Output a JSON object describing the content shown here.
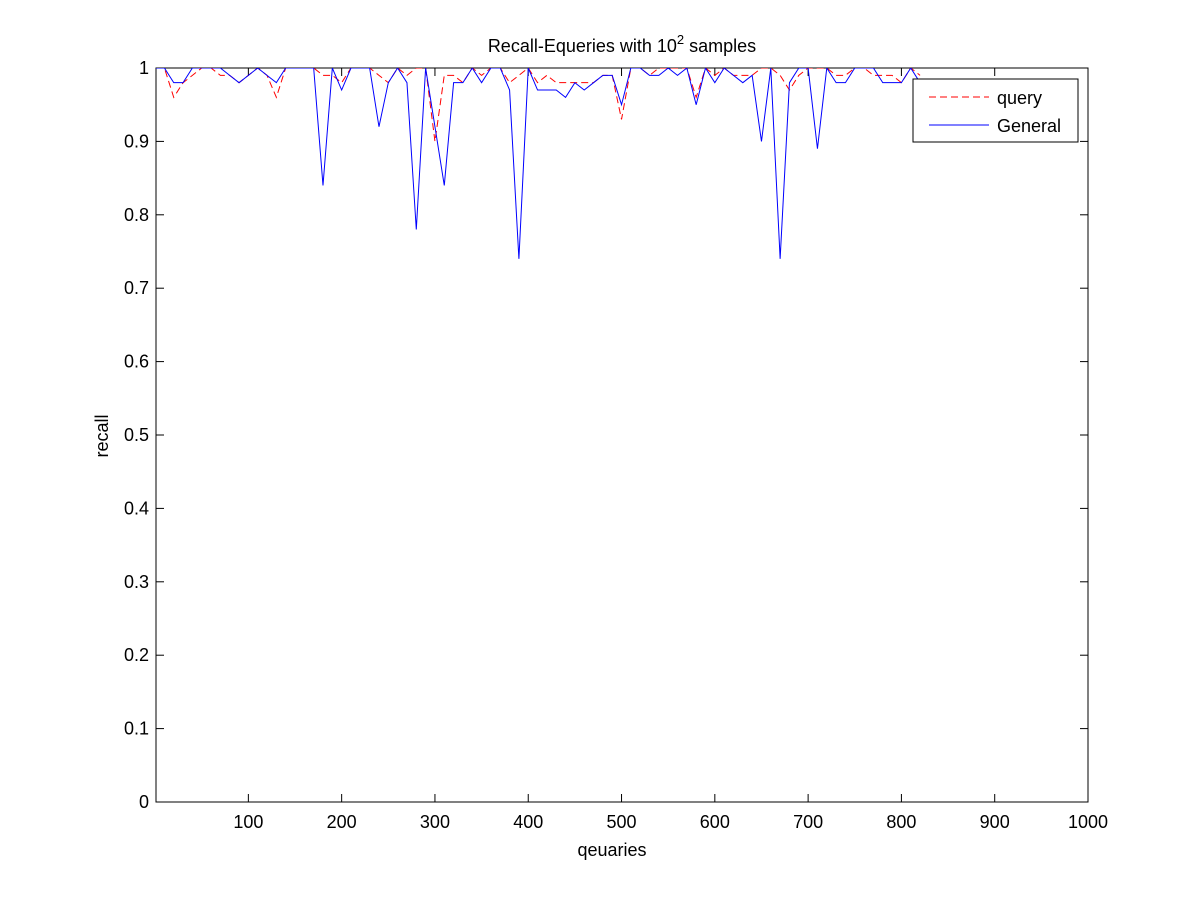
{
  "chart_data": {
    "type": "line",
    "title_main": "Recall-Equeries with 10",
    "title_sup": "2",
    "title_tail": " samples",
    "xlabel": "qeuaries",
    "ylabel": "recall",
    "xlim": [
      1,
      1000
    ],
    "ylim": [
      0,
      1
    ],
    "xticks": [
      100,
      200,
      300,
      400,
      500,
      600,
      700,
      800,
      900,
      1000
    ],
    "yticks": [
      0,
      0.1,
      0.2,
      0.3,
      0.4,
      0.5,
      0.6,
      0.7,
      0.8,
      0.9,
      1
    ],
    "ytick_labels": [
      "0",
      "0.1",
      "0.2",
      "0.3",
      "0.4",
      "0.5",
      "0.6",
      "0.7",
      "0.8",
      "0.9",
      "1"
    ],
    "grid": false,
    "legend_position": "top-right",
    "x": [
      1,
      10,
      20,
      30,
      40,
      50,
      60,
      70,
      80,
      90,
      100,
      110,
      120,
      130,
      140,
      150,
      160,
      170,
      180,
      190,
      200,
      210,
      220,
      230,
      240,
      250,
      260,
      270,
      280,
      290,
      300,
      310,
      320,
      330,
      340,
      350,
      360,
      370,
      380,
      390,
      400,
      410,
      420,
      430,
      440,
      450,
      460,
      470,
      480,
      490,
      500,
      510,
      520,
      530,
      540,
      550,
      560,
      570,
      580,
      590,
      600,
      610,
      620,
      630,
      640,
      650,
      660,
      670,
      680,
      690,
      700,
      710,
      720,
      730,
      740,
      750,
      760,
      770,
      780,
      790,
      800,
      810,
      820
    ],
    "series": [
      {
        "name": "query",
        "color": "#ff0000",
        "dash": "dashed",
        "values": [
          1,
          1,
          0.96,
          0.98,
          0.99,
          1,
          1,
          0.99,
          0.99,
          0.98,
          0.99,
          1,
          0.99,
          0.96,
          1,
          1,
          1,
          1,
          0.99,
          0.99,
          0.98,
          1,
          1,
          1,
          0.99,
          0.98,
          1,
          0.99,
          1,
          1,
          0.9,
          0.99,
          0.99,
          0.98,
          1,
          0.99,
          1,
          1,
          0.98,
          0.99,
          1,
          0.98,
          0.99,
          0.98,
          0.98,
          0.98,
          0.98,
          0.98,
          0.99,
          0.99,
          0.93,
          1,
          1,
          0.99,
          1,
          1,
          1,
          1,
          0.96,
          1,
          0.99,
          1,
          0.99,
          0.99,
          0.99,
          1,
          1,
          0.99,
          0.97,
          0.99,
          1,
          1,
          1,
          0.99,
          0.99,
          1,
          1,
          0.99,
          0.99,
          0.99,
          0.98,
          1,
          0.99
        ]
      },
      {
        "name": "General",
        "color": "#0000ff",
        "dash": "solid",
        "values": [
          1,
          1,
          0.98,
          0.98,
          1,
          1,
          1,
          1,
          0.99,
          0.98,
          0.99,
          1,
          0.99,
          0.98,
          1,
          1,
          1,
          1,
          0.84,
          1,
          0.97,
          1,
          1,
          1,
          0.92,
          0.98,
          1,
          0.98,
          0.78,
          1,
          0.92,
          0.84,
          0.98,
          0.98,
          1,
          0.98,
          1,
          1,
          0.97,
          0.74,
          1,
          0.97,
          0.97,
          0.97,
          0.96,
          0.98,
          0.97,
          0.98,
          0.99,
          0.99,
          0.95,
          1,
          1,
          0.99,
          0.99,
          1,
          0.99,
          1,
          0.95,
          1,
          0.98,
          1,
          0.99,
          0.98,
          0.99,
          0.9,
          1,
          0.74,
          0.98,
          1,
          1,
          0.89,
          1,
          0.98,
          0.98,
          1,
          1,
          1,
          0.98,
          0.98,
          0.98,
          1,
          0.98
        ]
      }
    ]
  }
}
